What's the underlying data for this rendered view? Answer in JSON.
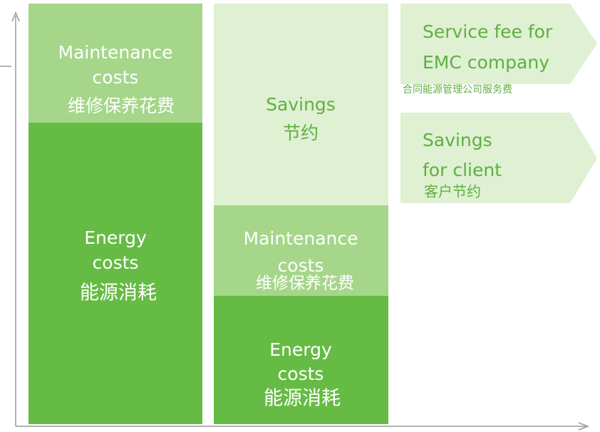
{
  "blocks": [
    {
      "lines": [
        "Maintenance",
        "costs",
        "维修保养花费"
      ]
    },
    {
      "lines": [
        "Energy",
        "costs",
        "能源消耗"
      ]
    },
    {
      "lines": [
        "Savings",
        "节约"
      ]
    },
    {
      "lines": [
        "Maintenance",
        "costs",
        "维修保养花费"
      ]
    },
    {
      "lines": [
        "Energy",
        "costs",
        "能源消耗"
      ]
    }
  ],
  "arrows": [
    {
      "lines": [
        "Service fee for",
        "EMC company",
        "合同能源管理公司服务费"
      ]
    },
    {
      "lines": [
        "Savings",
        "for client",
        "客户节约"
      ]
    }
  ]
}
